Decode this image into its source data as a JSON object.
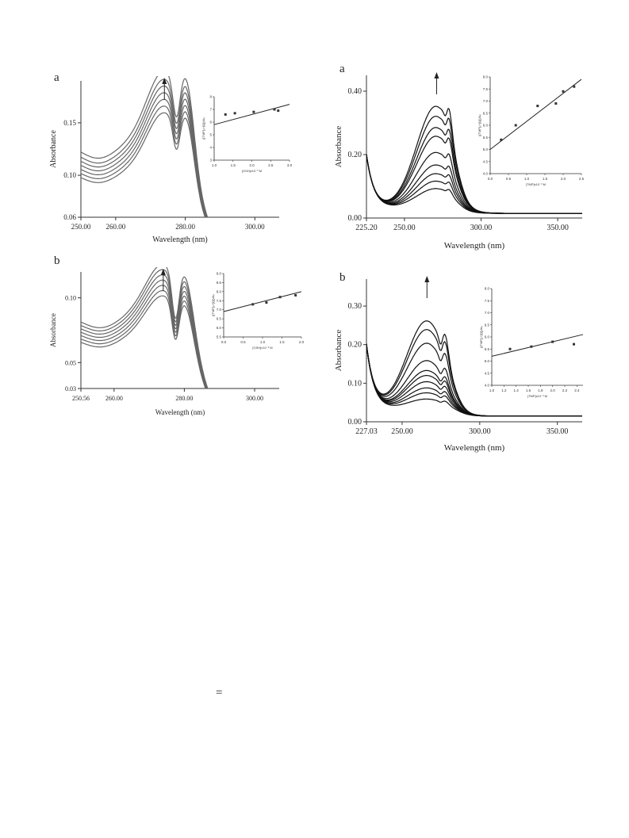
{
  "equals_sign": "=",
  "chart_data": [
    {
      "id": "p1",
      "type": "line",
      "panel_label": "a",
      "xlabel": "Wavelength (nm)",
      "ylabel": "Absorbance",
      "x_ticks": [
        "250.00",
        "260.00",
        "280.00",
        "300.00"
      ],
      "y_ticks": [
        "0.06",
        "0.10",
        "0.15"
      ],
      "xlim": [
        250,
        307
      ],
      "ylim": [
        0.06,
        0.19
      ],
      "curve": {
        "base_level": 0.105,
        "dip_x": 255,
        "dip_depth": 0.012,
        "peak1_x": 274,
        "peak1_h": 0.055,
        "peak2_x": 281,
        "peak2_h": 0.075,
        "valley_x": 277.5,
        "cutoff_x": 284,
        "cutoff_w": 1.8
      },
      "series_scale": [
        1.0,
        1.04,
        1.08,
        1.12,
        1.16,
        1.2,
        1.25
      ],
      "stroke": "#666666",
      "arrow_x": 274,
      "inset": {
        "x_ticks": [
          "1.0",
          "1.5",
          "2.0",
          "2.5",
          "3.0"
        ],
        "y_ticks": [
          "3",
          "4",
          "5",
          "6",
          "7",
          "8"
        ],
        "xlim": [
          1.0,
          3.0
        ],
        "ylim": [
          3,
          8
        ],
        "xlabel": "[GSH]x10⁻³ M",
        "ylabel": "([TMP]₀+[Q])/A₀",
        "points": [
          [
            1.3,
            6.6
          ],
          [
            1.55,
            6.7
          ],
          [
            2.05,
            6.8
          ],
          [
            2.6,
            7.0
          ],
          [
            2.7,
            6.9
          ]
        ],
        "line": [
          [
            1.0,
            5.8
          ],
          [
            3.0,
            7.4
          ]
        ]
      }
    },
    {
      "id": "p2",
      "type": "line",
      "panel_label": "a",
      "xlabel": "Wavelength (nm)",
      "ylabel": "Absorbance",
      "x_ticks": [
        "225.20",
        "250.00",
        "300.00",
        "350.00"
      ],
      "y_ticks": [
        "0.00",
        "0.20",
        "0.40"
      ],
      "xlim": [
        225.2,
        366
      ],
      "ylim": [
        0.0,
        0.45
      ],
      "curve": {
        "base_level": 0.03,
        "dip_x": 237,
        "dip_depth": 0.0,
        "peak1_x": 271,
        "peak1_h": 1.0,
        "peak2_x": 279,
        "peak2_h": 0.8,
        "valley_x": 277,
        "cutoff_x": 287,
        "cutoff_w": 4.0
      },
      "series_scale": [
        0.16,
        0.22,
        0.28,
        0.35,
        0.45,
        0.58,
        0.65,
        0.74,
        0.82
      ],
      "stroke": "#111111",
      "arrow_x": 271,
      "inset": {
        "x_ticks": [
          "0.0",
          "0.5",
          "1.0",
          "1.5",
          "2.0",
          "2.5"
        ],
        "y_ticks": [
          "4.0",
          "4.5",
          "5.0",
          "5.5",
          "6.0",
          "6.5",
          "7.0",
          "7.5",
          "8.0"
        ],
        "xlim": [
          0.0,
          2.5
        ],
        "ylim": [
          4.0,
          8.0
        ],
        "xlabel": "[TMP]x10⁻³ M",
        "ylabel": "([TMP]₀+[Q])/A₀",
        "points": [
          [
            0.3,
            5.4
          ],
          [
            0.7,
            6.0
          ],
          [
            1.3,
            6.8
          ],
          [
            1.8,
            6.9
          ],
          [
            2.0,
            7.4
          ],
          [
            2.3,
            7.6
          ]
        ],
        "line": [
          [
            0.0,
            5.0
          ],
          [
            2.5,
            7.9
          ]
        ]
      }
    },
    {
      "id": "p3",
      "type": "line",
      "panel_label": "b",
      "xlabel": "Wavelength (nm)",
      "ylabel": "Absorbance",
      "x_ticks": [
        "250.56",
        "260.00",
        "280.00",
        "300.00"
      ],
      "y_ticks": [
        "0.03",
        "0.05",
        "0.10"
      ],
      "xlim": [
        250.56,
        307
      ],
      "ylim": [
        0.03,
        0.12
      ],
      "curve": {
        "base_level": 0.07,
        "dip_x": 256,
        "dip_depth": 0.008,
        "peak1_x": 274,
        "peak1_h": 0.032,
        "peak2_x": 281,
        "peak2_h": 0.038,
        "valley_x": 277.5,
        "cutoff_x": 284.5,
        "cutoff_w": 2.0
      },
      "series_scale": [
        1.0,
        1.04,
        1.08,
        1.12,
        1.16,
        1.2,
        1.24
      ],
      "stroke": "#666666",
      "arrow_x": 274,
      "inset": {
        "x_ticks": [
          "0.0",
          "0.5",
          "1.0",
          "1.5",
          "2.0"
        ],
        "y_ticks": [
          "5.5",
          "6.0",
          "6.5",
          "7.0",
          "7.5",
          "8.0",
          "8.5",
          "9.0"
        ],
        "xlim": [
          0.0,
          2.0
        ],
        "ylim": [
          5.5,
          9.0
        ],
        "xlabel": "[GSH]x10⁻³ M",
        "ylabel": "([TMP]₀+[Q])/A₀",
        "points": [
          [
            0.75,
            7.3
          ],
          [
            1.1,
            7.4
          ],
          [
            1.45,
            7.7
          ],
          [
            1.85,
            7.8
          ]
        ],
        "line": [
          [
            0.0,
            6.9
          ],
          [
            2.0,
            8.0
          ]
        ]
      }
    },
    {
      "id": "p4",
      "type": "line",
      "panel_label": "b",
      "xlabel": "Wavelength (nm)",
      "ylabel": "Absorbance",
      "x_ticks": [
        "227.03",
        "250.00",
        "300.00",
        "350.00"
      ],
      "y_ticks": [
        "0.00",
        "0.10",
        "0.20",
        "0.30"
      ],
      "xlim": [
        227.03,
        366
      ],
      "ylim": [
        0.0,
        0.37
      ],
      "curve": {
        "base_level": 0.03,
        "dip_x": 250,
        "dip_depth": 0.0,
        "peak1_x": 266,
        "peak1_h": 1.0,
        "peak2_x": 278,
        "peak2_h": 0.75,
        "valley_x": 275,
        "cutoff_x": 287,
        "cutoff_w": 4.0
      },
      "series_scale": [
        0.09,
        0.14,
        0.18,
        0.23,
        0.28,
        0.32,
        0.4,
        0.54,
        0.65,
        0.72
      ],
      "stroke": "#111111",
      "arrow_x": 266,
      "inset": {
        "x_ticks": [
          "1.0",
          "1.2",
          "1.4",
          "1.6",
          "1.8",
          "2.0",
          "2.2",
          "2.4"
        ],
        "y_ticks": [
          "4.0",
          "4.5",
          "5.0",
          "5.5",
          "6.0",
          "6.5",
          "7.0",
          "7.5",
          "8.0"
        ],
        "xlim": [
          1.0,
          2.5
        ],
        "ylim": [
          4.0,
          8.0
        ],
        "xlabel": "[TMP]x10⁻³ M",
        "ylabel": "([TMP]₀+[Q])/A₀",
        "points": [
          [
            1.3,
            5.5
          ],
          [
            1.65,
            5.6
          ],
          [
            2.0,
            5.8
          ],
          [
            2.35,
            5.7
          ]
        ],
        "line": [
          [
            1.0,
            5.2
          ],
          [
            2.5,
            6.1
          ]
        ]
      }
    }
  ]
}
